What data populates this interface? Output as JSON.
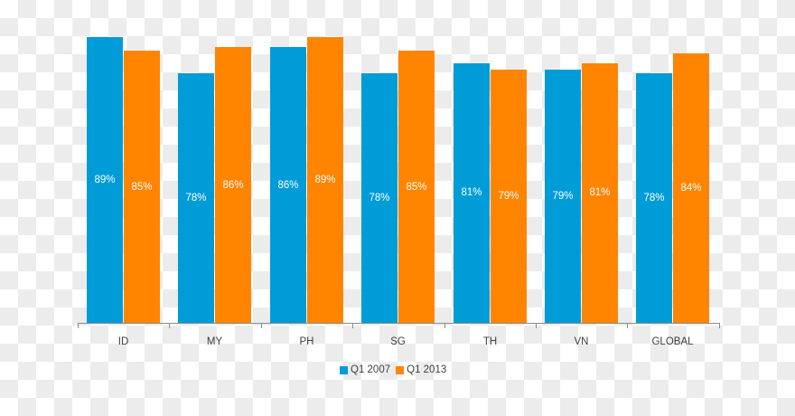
{
  "chart_data": {
    "type": "bar",
    "title": "",
    "xlabel": "",
    "ylabel": "",
    "categories": [
      "ID",
      "MY",
      "PH",
      "SG",
      "TH",
      "VN",
      "GLOBAL"
    ],
    "series": [
      {
        "name": "Q1 2007",
        "color": "#009CD8",
        "values": [
          89,
          78,
          86,
          78,
          81,
          79,
          78
        ],
        "labels": [
          "89%",
          "78%",
          "86%",
          "78%",
          "81%",
          "79%",
          "78%"
        ]
      },
      {
        "name": "Q1 2013",
        "color": "#FF8400",
        "values": [
          85,
          86,
          89,
          85,
          79,
          81,
          84
        ],
        "labels": [
          "85%",
          "86%",
          "89%",
          "85%",
          "79%",
          "81%",
          "84%"
        ]
      }
    ],
    "value_format": "percent",
    "grid": false,
    "legend_position": "bottom"
  },
  "legend": [
    {
      "label": "Q1 2007",
      "color": "#009CD8"
    },
    {
      "label": "Q1 2013",
      "color": "#FF8400"
    }
  ]
}
